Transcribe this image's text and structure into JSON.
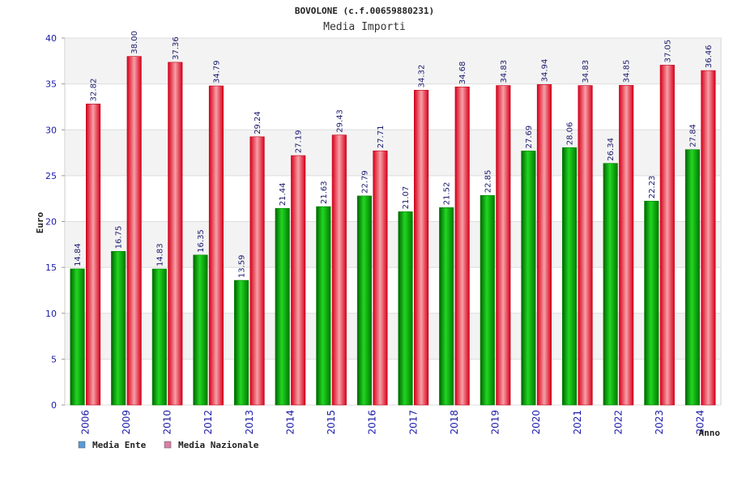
{
  "chart_data": {
    "type": "bar",
    "title": "BOVOLONE (c.f.00659880231)",
    "subtitle": "Media Importi",
    "xlabel": "Anno",
    "ylabel": "Euro",
    "ylim": [
      0,
      40
    ],
    "yticks": [
      0,
      5,
      10,
      15,
      20,
      25,
      30,
      35,
      40
    ],
    "grid": true,
    "legend_position": "bottom-left",
    "categories": [
      "2006",
      "2009",
      "2010",
      "2012",
      "2013",
      "2014",
      "2015",
      "2016",
      "2017",
      "2018",
      "2019",
      "2020",
      "2021",
      "2022",
      "2023",
      "2024"
    ],
    "series": [
      {
        "name": "Media Ente",
        "color": "#00b000",
        "legend_color": "#5b9bd5",
        "values": [
          14.84,
          16.75,
          14.83,
          16.35,
          13.59,
          21.44,
          21.63,
          22.79,
          21.07,
          21.52,
          22.85,
          27.69,
          28.06,
          26.34,
          22.23,
          27.84
        ],
        "labels": [
          "14.84",
          "16.75",
          "14.83",
          "16.35",
          "13.59",
          "21.44",
          "21.63",
          "22.79",
          "21.07",
          "21.52",
          "22.85",
          "27.69",
          "28.06",
          "26.34",
          "22.23",
          "27.84"
        ]
      },
      {
        "name": "Media Nazionale",
        "color": "#e8001c",
        "legend_color": "#d87fa8",
        "values": [
          32.82,
          38.0,
          37.36,
          34.79,
          29.24,
          27.19,
          29.43,
          27.71,
          34.32,
          34.68,
          34.83,
          34.94,
          34.83,
          34.85,
          37.05,
          36.46
        ],
        "labels": [
          "32.82",
          "38.00",
          "37.36",
          "34.79",
          "29.24",
          "27.19",
          "29.43",
          "27.71",
          "34.32",
          "34.68",
          "34.83",
          "34.94",
          "34.83",
          "34.85",
          "37.05",
          "36.46"
        ]
      }
    ]
  }
}
